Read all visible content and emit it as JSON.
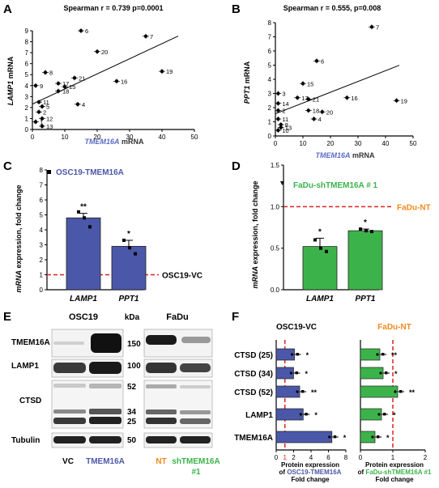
{
  "panelA": {
    "letter": "A",
    "stat": "Spearman r = 0.739 p=0.0001",
    "ylabel_gene": "LAMP1",
    "ylabel_rest": " mRNA",
    "xlabel_gene": "TMEM16A",
    "xlabel_rest": " mRNA",
    "yticks": [
      "0",
      "1",
      "2",
      "3",
      "4",
      "5",
      "6",
      "7",
      "8",
      "9"
    ],
    "xticks": [
      "0",
      "10",
      "20",
      "30",
      "40",
      "50"
    ],
    "points": [
      {
        "x": 15,
        "y": 9.0,
        "label": "6"
      },
      {
        "x": 35,
        "y": 8.5,
        "label": "7"
      },
      {
        "x": 20,
        "y": 7.1,
        "label": "20"
      },
      {
        "x": 40,
        "y": 5.3,
        "label": "19"
      },
      {
        "x": 4,
        "y": 5.2,
        "label": "8"
      },
      {
        "x": 13,
        "y": 4.7,
        "label": "21"
      },
      {
        "x": 26,
        "y": 4.4,
        "label": "16"
      },
      {
        "x": 1,
        "y": 4.0,
        "label": "9"
      },
      {
        "x": 8,
        "y": 4.2,
        "label": "17"
      },
      {
        "x": 10,
        "y": 3.9,
        "label": "15"
      },
      {
        "x": 8,
        "y": 3.5,
        "label": "18"
      },
      {
        "x": 14,
        "y": 2.3,
        "label": "4"
      },
      {
        "x": 2,
        "y": 2.5,
        "label": "11"
      },
      {
        "x": 3,
        "y": 2.1,
        "label": "5"
      },
      {
        "x": 2,
        "y": 1.6,
        "label": "2"
      },
      {
        "x": 3,
        "y": 1.0,
        "label": "12"
      },
      {
        "x": 1,
        "y": 0.7,
        "label": "1"
      },
      {
        "x": 3,
        "y": 0.3,
        "label": "13"
      }
    ]
  },
  "panelB": {
    "letter": "B",
    "stat": "Spearman r = 0.555, p=0.008",
    "ylabel_gene": "PPT1",
    "ylabel_rest": " mRNA",
    "xlabel_gene": "TMEM16A",
    "xlabel_rest": " mRNA",
    "yticks": [
      "0",
      "1",
      "2",
      "3",
      "4",
      "5",
      "6",
      "7",
      "8"
    ],
    "xticks": [
      "0",
      "10",
      "20",
      "30",
      "40",
      "50"
    ],
    "points": [
      {
        "x": 35,
        "y": 7.7,
        "label": "7"
      },
      {
        "x": 15,
        "y": 5.3,
        "label": "6"
      },
      {
        "x": 10,
        "y": 3.7,
        "label": "15"
      },
      {
        "x": 1,
        "y": 3.0,
        "label": "3"
      },
      {
        "x": 8,
        "y": 2.7,
        "label": "17"
      },
      {
        "x": 12,
        "y": 2.6,
        "label": "21"
      },
      {
        "x": 26,
        "y": 2.7,
        "label": "16"
      },
      {
        "x": 44,
        "y": 2.5,
        "label": "19"
      },
      {
        "x": 1,
        "y": 2.3,
        "label": "14"
      },
      {
        "x": 12,
        "y": 1.8,
        "label": "18"
      },
      {
        "x": 17,
        "y": 1.7,
        "label": "20"
      },
      {
        "x": 1,
        "y": 1.8,
        "label": "2"
      },
      {
        "x": 14,
        "y": 1.2,
        "label": "4"
      },
      {
        "x": 1,
        "y": 1.2,
        "label": "11"
      },
      {
        "x": 2,
        "y": 0.8,
        "label": "8"
      },
      {
        "x": 2,
        "y": 0.6,
        "label": "13"
      },
      {
        "x": 1,
        "y": 0.4,
        "label": "10"
      }
    ]
  },
  "panelC": {
    "letter": "C",
    "legend": "OSC19-TMEM16A",
    "ylabel_gene": "mRNA",
    "ylabel_rest": " expression, fold change",
    "yticks": [
      "0",
      "1",
      "2",
      "3",
      "4",
      "5",
      "6",
      "7",
      "8"
    ],
    "ref_label": "OSC19-VC",
    "bars": [
      {
        "label": "LAMP1",
        "value": 4.8,
        "sd": 0.3,
        "sig": "**",
        "points": [
          5.2,
          4.8,
          4.2
        ]
      },
      {
        "label": "PPT1",
        "value": 2.9,
        "sd": 0.4,
        "sig": "*",
        "points": [
          3.3,
          2.8,
          2.4
        ]
      }
    ],
    "color": "#4b57a8"
  },
  "panelD": {
    "letter": "D",
    "legend": "FaDu-shTMEM16A # 1",
    "ylabel_gene": "mRNA",
    "ylabel_rest": " expression, fold change",
    "yticks": [
      "0.0",
      "0.5",
      "1.0",
      "1.5"
    ],
    "ref_label": "FaDu-NT",
    "bars": [
      {
        "label": "LAMP1",
        "value": 0.52,
        "sd": 0.1,
        "sig": "*",
        "points": [
          0.6,
          0.5,
          0.46
        ]
      },
      {
        "label": "PPT1",
        "value": 0.71,
        "sd": 0.02,
        "sig": "*",
        "points": [
          0.73,
          0.71,
          0.7
        ]
      }
    ],
    "color": "#3cb34a"
  },
  "panelE": {
    "letter": "E",
    "left_title": "OSC19",
    "right_title": "FaDu",
    "kda": "kDa",
    "rows": [
      {
        "label": "TMEM16A",
        "kda": [
          "150"
        ]
      },
      {
        "label": "LAMP1",
        "kda": [
          "100"
        ]
      },
      {
        "label": "CTSD",
        "kda": [
          "52",
          "34",
          "25"
        ]
      },
      {
        "label": "Tubulin",
        "kda": [
          "50"
        ]
      }
    ],
    "bottom_vc": "VC",
    "bottom_tmem": "TMEM16A",
    "bottom_nt": "NT",
    "bottom_sh": "shTMEM16A",
    "bottom_sh2": "#1"
  },
  "panelF": {
    "letter": "F",
    "left_title": "OSC19-VC",
    "right_title": "FaDu-NT",
    "rows": [
      {
        "label": "CTSD (25)",
        "osc": 2.1,
        "fadu": 0.6,
        "osc_sig": "*",
        "fadu_sig": "**"
      },
      {
        "label": "CTSD (34)",
        "osc": 2.0,
        "fadu": 0.7,
        "osc_sig": "*",
        "fadu_sig": "*"
      },
      {
        "label": "CTSD (52)",
        "osc": 2.7,
        "fadu": 1.15,
        "osc_sig": "**",
        "fadu_sig": "**"
      },
      {
        "label": "LAMP1",
        "osc": 3.1,
        "fadu": 0.65,
        "osc_sig": "*",
        "fadu_sig": "*"
      },
      {
        "label": "TMEM16A",
        "osc": 6.4,
        "fadu": 0.45,
        "osc_sig": "*",
        "fadu_sig": "*"
      }
    ],
    "osc_ticks": [
      "0",
      "2",
      "4",
      "6",
      "8"
    ],
    "fadu_ticks": [
      "0",
      "1",
      "2"
    ],
    "ref_tick": "1",
    "osc_xlabel_1": "Protein expression",
    "osc_xlabel_2a": "of ",
    "osc_xlabel_2b": "OSC19-TMEM16A",
    "osc_xlabel_3": "Fold change",
    "fadu_xlabel_1": "Protein expression",
    "fadu_xlabel_2a": "of ",
    "fadu_xlabel_2b": "FaDu-shTMEM16A #1",
    "fadu_xlabel_3": "Fold change"
  },
  "colors": {
    "blue": "#4b57a8",
    "green": "#3cb34a",
    "orange": "#f08a1e",
    "red": "#e02020",
    "blue_text": "#5b6cc6"
  },
  "chart_data": [
    {
      "type": "scatter",
      "xlabel": "TMEM16A mRNA",
      "ylabel": "LAMP1 mRNA",
      "title": "Spearman r = 0.739 p=0.0001",
      "xlim": [
        0,
        50
      ],
      "ylim": [
        0,
        9
      ]
    },
    {
      "type": "scatter",
      "xlabel": "TMEM16A mRNA",
      "ylabel": "PPT1 mRNA",
      "title": "Spearman r = 0.555, p=0.008",
      "xlim": [
        0,
        50
      ],
      "ylim": [
        0,
        8
      ]
    },
    {
      "type": "bar",
      "categories": [
        "LAMP1",
        "PPT1"
      ],
      "values": [
        4.8,
        2.9
      ],
      "ylabel": "mRNA expression, fold change",
      "ylim": [
        0,
        8
      ]
    },
    {
      "type": "bar",
      "categories": [
        "LAMP1",
        "PPT1"
      ],
      "values": [
        0.52,
        0.71
      ],
      "ylabel": "mRNA expression, fold change",
      "ylim": [
        0,
        1.5
      ]
    },
    {
      "type": "bar",
      "categories": [
        "CTSD (25)",
        "CTSD (34)",
        "CTSD (52)",
        "LAMP1",
        "TMEM16A"
      ],
      "values": [
        2.1,
        2.0,
        2.7,
        3.1,
        6.4
      ],
      "xlim": [
        0,
        8
      ]
    },
    {
      "type": "bar",
      "categories": [
        "CTSD (25)",
        "CTSD (34)",
        "CTSD (52)",
        "LAMP1",
        "TMEM16A"
      ],
      "values": [
        0.6,
        0.7,
        1.15,
        0.65,
        0.45
      ],
      "xlim": [
        0,
        2
      ]
    }
  ]
}
